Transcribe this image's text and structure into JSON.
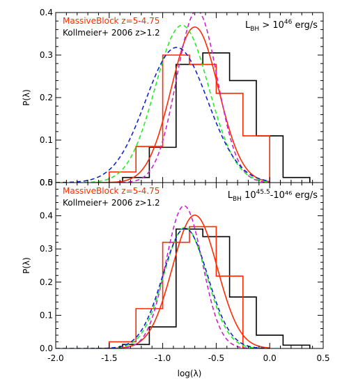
{
  "colors": {
    "black": "#000000",
    "red": "#ff2a00",
    "magenta": "#cc22cc",
    "green": "#22ee22",
    "blue": "#1122cc"
  },
  "chart_data": [
    {
      "type": "line",
      "panel": "top",
      "xlabel": "",
      "ylabel": "P(λ)",
      "xlim": [
        -2.0,
        0.5
      ],
      "ylim": [
        0.0,
        0.4
      ],
      "x_ticks": [
        "-2.0",
        "-1.5",
        "-1.0",
        "-0.5",
        "0.0",
        "0.5"
      ],
      "y_ticks": [
        {
          "value": 0.0,
          "label": "0.0"
        },
        {
          "value": 0.1,
          "label": "0.1"
        },
        {
          "value": 0.2,
          "label": "0.2"
        },
        {
          "value": 0.3,
          "label": "0.3"
        },
        {
          "value": 0.4,
          "label": "0.4"
        }
      ],
      "legend": [
        {
          "label": "MassiveBlock z=5-4.75",
          "color": "#ff2a00"
        },
        {
          "label": "Kollmeier+ 2006 z>1.2",
          "color": "#000000"
        }
      ],
      "annotation": {
        "main": "L",
        "sub": "BH",
        "rel": " > 10",
        "sup": "46",
        "unit": " erg/s"
      },
      "histograms": [
        {
          "color": "#000000",
          "edges": [
            -1.625,
            -1.375,
            -1.125,
            -0.875,
            -0.625,
            -0.375,
            -0.125,
            0.125,
            0.375
          ],
          "values": [
            0.0,
            0.012,
            0.083,
            0.278,
            0.305,
            0.24,
            0.11,
            0.012
          ]
        },
        {
          "color": "#ff2a00",
          "edges": [
            -1.5,
            -1.25,
            -1.0,
            -0.75,
            -0.5,
            -0.25,
            0.0
          ],
          "values": [
            0.025,
            0.085,
            0.3,
            0.278,
            0.21,
            0.11
          ]
        }
      ],
      "curves": [
        {
          "color": "#ff2a00",
          "dash": false,
          "mu": -0.7,
          "sigma": 0.22,
          "peak": 0.366,
          "xmin": -1.55,
          "xmax": 0.0
        },
        {
          "color": "#cc22cc",
          "dash": true,
          "mu": -0.68,
          "sigma": 0.19,
          "peak": 0.405,
          "xmin": -1.45,
          "xmax": 0.0
        },
        {
          "color": "#22ee22",
          "dash": true,
          "mu": -0.82,
          "sigma": 0.25,
          "peak": 0.37,
          "xmin": -1.8,
          "xmax": 0.0
        },
        {
          "color": "#1122cc",
          "dash": true,
          "mu": -0.87,
          "sigma": 0.29,
          "peak": 0.318,
          "xmin": -2.0,
          "xmax": 0.0
        }
      ]
    },
    {
      "type": "line",
      "panel": "bottom",
      "xlabel": "log(λ)",
      "ylabel": "P(λ)",
      "xlim": [
        -2.0,
        0.5
      ],
      "ylim": [
        0.0,
        0.5
      ],
      "x_ticks": [
        "-2.0",
        "-1.5",
        "-1.0",
        "-0.5",
        "0.0",
        "0.5"
      ],
      "y_ticks": [
        {
          "value": 0.0,
          "label": "0.0"
        },
        {
          "value": 0.1,
          "label": "0.1"
        },
        {
          "value": 0.2,
          "label": "0.2"
        },
        {
          "value": 0.3,
          "label": "0.3"
        },
        {
          "value": 0.4,
          "label": "0.4"
        },
        {
          "value": 0.5,
          "label": "0.5"
        }
      ],
      "legend": [
        {
          "label": "MassiveBlock z=5-4.75",
          "color": "#ff2a00"
        },
        {
          "label": "Kollmeier+ 2006 z>1.2",
          "color": "#000000"
        }
      ],
      "annotation": {
        "main": "L",
        "sub": "BH",
        "rel": " 10",
        "sup": "45.5",
        "unit": "-10⁴⁶ erg/s"
      },
      "histograms": [
        {
          "color": "#000000",
          "edges": [
            -1.625,
            -1.375,
            -1.125,
            -0.875,
            -0.625,
            -0.375,
            -0.125,
            0.125,
            0.375
          ],
          "values": [
            0.0,
            0.012,
            0.065,
            0.36,
            0.337,
            0.155,
            0.04,
            0.01
          ]
        },
        {
          "color": "#ff2a00",
          "edges": [
            -1.5,
            -1.25,
            -1.0,
            -0.75,
            -0.5,
            -0.25
          ],
          "values": [
            0.02,
            0.12,
            0.32,
            0.367,
            0.218
          ]
        }
      ],
      "curves": [
        {
          "color": "#ff2a00",
          "dash": false,
          "mu": -0.7,
          "sigma": 0.21,
          "peak": 0.402,
          "xmin": -1.5,
          "xmax": 0.0
        },
        {
          "color": "#cc22cc",
          "dash": true,
          "mu": -0.8,
          "sigma": 0.17,
          "peak": 0.43,
          "xmin": -1.6,
          "xmax": 0.0
        },
        {
          "color": "#22ee22",
          "dash": true,
          "mu": -0.79,
          "sigma": 0.2,
          "peak": 0.365,
          "xmin": -2.0,
          "xmax": 0.0
        },
        {
          "color": "#1122cc",
          "dash": true,
          "mu": -0.79,
          "sigma": 0.21,
          "peak": 0.362,
          "xmin": -2.0,
          "xmax": 0.0
        }
      ]
    }
  ]
}
